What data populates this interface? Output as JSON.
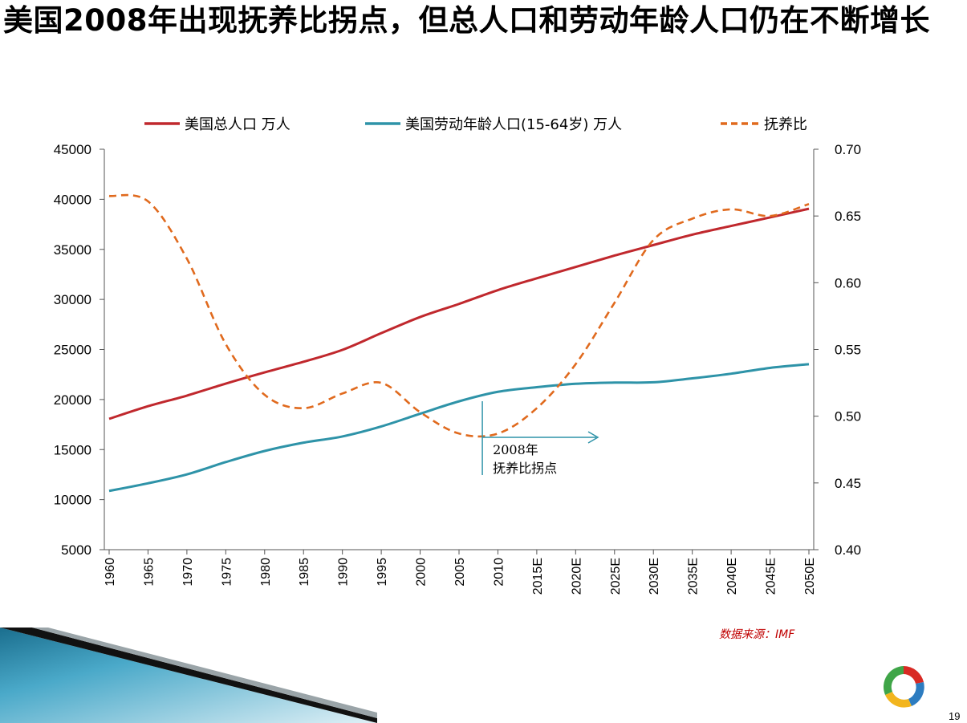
{
  "slide": {
    "title": "美国2008年出现抚养比拐点，但总人口和劳动年龄人口仍在不断增长",
    "source": "数据来源：IMF",
    "page_number": "19",
    "colors": {
      "total": "#c0282d",
      "working": "#2e93a8",
      "dependency": "#e06a1e"
    }
  },
  "chart_data": {
    "type": "line",
    "x": [
      "1960",
      "1965",
      "1970",
      "1975",
      "1980",
      "1985",
      "1990",
      "1995",
      "2000",
      "2005",
      "2010",
      "2015E",
      "2020E",
      "2025E",
      "2030E",
      "2035E",
      "2040E",
      "2045E",
      "2050E"
    ],
    "series": [
      {
        "name": "美国总人口  万人",
        "axis": "left",
        "style": "solid",
        "values": [
          18070,
          19330,
          20390,
          21590,
          22710,
          23770,
          24960,
          26630,
          28240,
          29550,
          30930,
          32110,
          33240,
          34380,
          35430,
          36470,
          37340,
          38190,
          39060
        ]
      },
      {
        "name": "美国劳动年龄人口(15-64岁) 万人",
        "axis": "left",
        "style": "solid",
        "values": [
          10870,
          11630,
          12520,
          13750,
          14860,
          15690,
          16310,
          17310,
          18580,
          19820,
          20770,
          21230,
          21570,
          21690,
          21720,
          22110,
          22580,
          23160,
          23530
        ]
      },
      {
        "name": "抚养比",
        "axis": "right",
        "style": "dashed",
        "values": [
          0.665,
          0.661,
          0.618,
          0.554,
          0.516,
          0.506,
          0.517,
          0.525,
          0.503,
          0.487,
          0.487,
          0.506,
          0.539,
          0.585,
          0.632,
          0.648,
          0.655,
          0.65,
          0.659
        ]
      }
    ],
    "y_left": {
      "min": 5000,
      "max": 45000,
      "ticks": [
        "5000",
        "10000",
        "15000",
        "20000",
        "25000",
        "30000",
        "35000",
        "40000",
        "45000"
      ]
    },
    "y_right": {
      "min": 0.4,
      "max": 0.7,
      "ticks": [
        "0.40",
        "0.45",
        "0.50",
        "0.55",
        "0.60",
        "0.65",
        "0.70"
      ]
    },
    "legend_position": "top",
    "grid": false,
    "annotation": {
      "year": "2008",
      "line1": "2008年",
      "line2": "抚养比拐点"
    }
  }
}
